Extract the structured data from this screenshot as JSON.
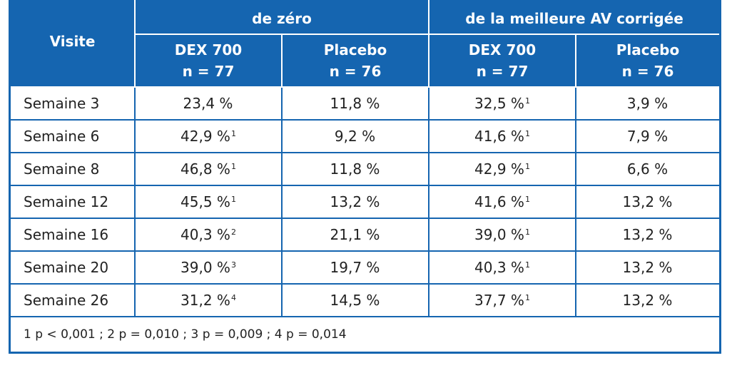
{
  "header": {
    "visit_label": "Visite",
    "group1_label": "de zéro",
    "group2_label": "de la meilleure AV corrigée",
    "subheaders": [
      {
        "line1": "DEX 700",
        "line2": "n = 77"
      },
      {
        "line1": "Placebo",
        "line2": "n = 76"
      },
      {
        "line1": "DEX 700",
        "line2": "n = 77"
      },
      {
        "line1": "Placebo",
        "line2": "n = 76"
      }
    ]
  },
  "rows": [
    {
      "visit": "Semaine 3",
      "cells": [
        {
          "v": "23,4 %",
          "sup": ""
        },
        {
          "v": "11,8 %",
          "sup": ""
        },
        {
          "v": "32,5 %",
          "sup": "1"
        },
        {
          "v": "3,9 %",
          "sup": ""
        }
      ]
    },
    {
      "visit": "Semaine 6",
      "cells": [
        {
          "v": "42,9 %",
          "sup": "1"
        },
        {
          "v": "9,2 %",
          "sup": ""
        },
        {
          "v": "41,6 %",
          "sup": "1"
        },
        {
          "v": "7,9 %",
          "sup": ""
        }
      ]
    },
    {
      "visit": "Semaine 8",
      "cells": [
        {
          "v": "46,8 %",
          "sup": "1"
        },
        {
          "v": "11,8 %",
          "sup": ""
        },
        {
          "v": "42,9 %",
          "sup": "1"
        },
        {
          "v": "6,6 %",
          "sup": ""
        }
      ]
    },
    {
      "visit": "Semaine 12",
      "cells": [
        {
          "v": "45,5 %",
          "sup": "1"
        },
        {
          "v": "13,2 %",
          "sup": ""
        },
        {
          "v": "41,6 %",
          "sup": "1"
        },
        {
          "v": "13,2 %",
          "sup": ""
        }
      ]
    },
    {
      "visit": "Semaine 16",
      "cells": [
        {
          "v": "40,3 %",
          "sup": "2"
        },
        {
          "v": "21,1 %",
          "sup": ""
        },
        {
          "v": "39,0 %",
          "sup": "1"
        },
        {
          "v": "13,2 %",
          "sup": ""
        }
      ]
    },
    {
      "visit": "Semaine 20",
      "cells": [
        {
          "v": "39,0 %",
          "sup": "3"
        },
        {
          "v": "19,7 %",
          "sup": ""
        },
        {
          "v": "40,3 %",
          "sup": "1"
        },
        {
          "v": "13,2 %",
          "sup": ""
        }
      ]
    },
    {
      "visit": "Semaine 26",
      "cells": [
        {
          "v": "31,2 %",
          "sup": "4"
        },
        {
          "v": "14,5 %",
          "sup": ""
        },
        {
          "v": "37,7 %",
          "sup": "1"
        },
        {
          "v": "13,2 %",
          "sup": ""
        }
      ]
    }
  ],
  "footnote": "1 p < 0,001 ; 2 p = 0,010 ; 3 p = 0,009 ; 4 p = 0,014"
}
